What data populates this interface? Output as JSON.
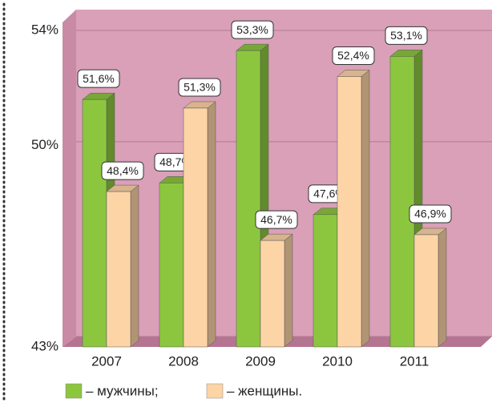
{
  "chart_data": {
    "type": "bar3d",
    "categories": [
      "2007",
      "2008",
      "2009",
      "2010",
      "2011"
    ],
    "series": [
      {
        "name": "– мужчины;",
        "color": "#8cc63f",
        "values": [
          51.6,
          48.7,
          53.3,
          47.6,
          53.1
        ],
        "value_labels": [
          "51,6%",
          "48,7%",
          "53,3%",
          "47,6%",
          "53,1%"
        ]
      },
      {
        "name": "– женщины.",
        "color": "#fdd4a6",
        "values": [
          48.4,
          51.3,
          46.7,
          52.4,
          46.9
        ],
        "value_labels": [
          "48,4%",
          "51,3%",
          "46,7%",
          "52,4%",
          "46,9%"
        ]
      }
    ],
    "ylim": [
      43,
      54
    ],
    "yticks": [
      {
        "value": 43,
        "label": "43%"
      },
      {
        "value": 50,
        "label": "50%"
      },
      {
        "value": 54,
        "label": "54%"
      }
    ],
    "grid": true
  }
}
